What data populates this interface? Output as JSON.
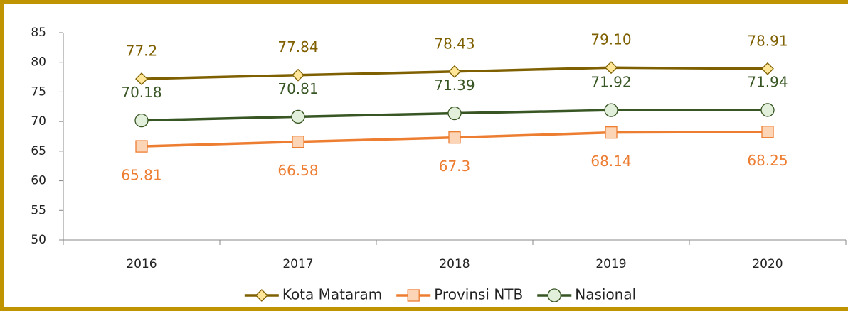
{
  "chart_data": {
    "type": "line",
    "categories": [
      "2016",
      "2017",
      "2018",
      "2019",
      "2020"
    ],
    "series": [
      {
        "name": "Kota Mataram",
        "color": "#7f6000",
        "marker": "diamond",
        "marker_fill": "#ffe699",
        "label_position": "above",
        "values": [
          77.2,
          77.84,
          78.43,
          79.1,
          78.91
        ],
        "value_labels": [
          "77.2",
          "77.84",
          "78.43",
          "79.10",
          "78.91"
        ]
      },
      {
        "name": "Provinsi NTB",
        "color": "#ed7d31",
        "marker": "square",
        "marker_fill": "#fbd5b5",
        "label_position": "below",
        "values": [
          65.81,
          66.58,
          67.3,
          68.14,
          68.25
        ],
        "value_labels": [
          "65.81",
          "66.58",
          "67.3",
          "68.14",
          "68.25"
        ]
      },
      {
        "name": "Nasional",
        "color": "#375623",
        "marker": "circle",
        "marker_fill": "#e2efda",
        "label_position": "above",
        "values": [
          70.18,
          70.81,
          71.39,
          71.92,
          71.94
        ],
        "value_labels": [
          "70.18",
          "70.81",
          "71.39",
          "71.92",
          "71.94"
        ]
      }
    ],
    "ylim": [
      50,
      85
    ],
    "yticks": [
      50,
      55,
      60,
      65,
      70,
      75,
      80,
      85
    ],
    "legend": "bottom"
  }
}
